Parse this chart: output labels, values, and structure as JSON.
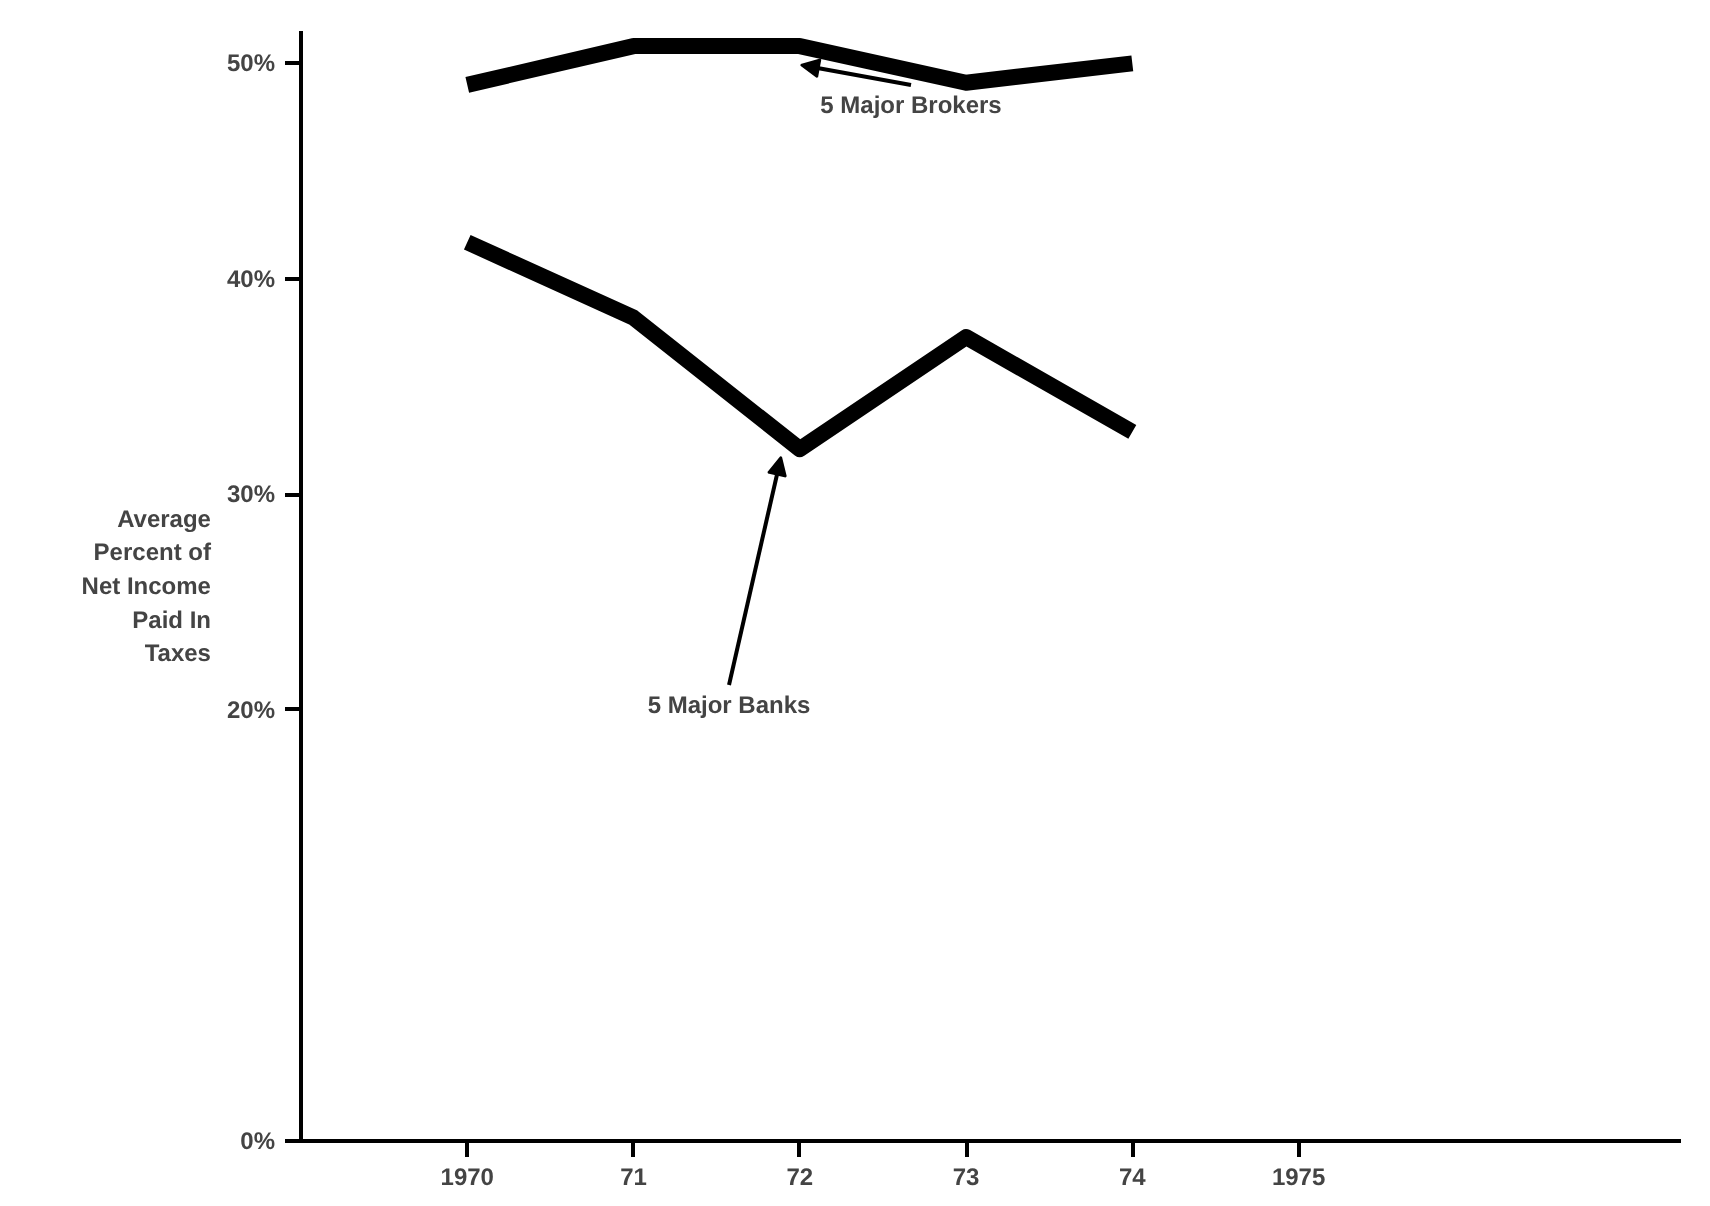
{
  "chart_data": {
    "type": "line",
    "ylabel": "Average\nPercent of\nNet Income\nPaid In\nTaxes",
    "x": [
      1970,
      1971,
      1972,
      1973,
      1974
    ],
    "series": [
      {
        "color": "#000000",
        "values": [
          49.0,
          50.8,
          50.8,
          49.1,
          50.0
        ]
      },
      {
        "color": "#000000",
        "values": [
          41.7,
          38.2,
          32.1,
          37.3,
          32.9
        ]
      }
    ],
    "annotations": [
      "5 Major Brokers",
      "5 Major Banks"
    ],
    "xlim": [
      1969,
      1977.3
    ],
    "ylim": [
      0,
      51.5
    ],
    "xticks": [
      1970,
      {
        "value": 1971,
        "label": "71"
      },
      {
        "value": 1972,
        "label": "72"
      },
      {
        "value": 1973,
        "label": "73"
      },
      {
        "value": 1974,
        "label": "74"
      },
      1975
    ],
    "yticks": [
      {
        "value": 0,
        "label": "0%"
      },
      {
        "value": 20,
        "label": "20%"
      },
      {
        "value": 30,
        "label": "30%"
      },
      {
        "value": 40,
        "label": "40%"
      },
      {
        "value": 50,
        "label": "50%"
      }
    ],
    "grid": false,
    "marker": "none",
    "line_style": "solid"
  }
}
